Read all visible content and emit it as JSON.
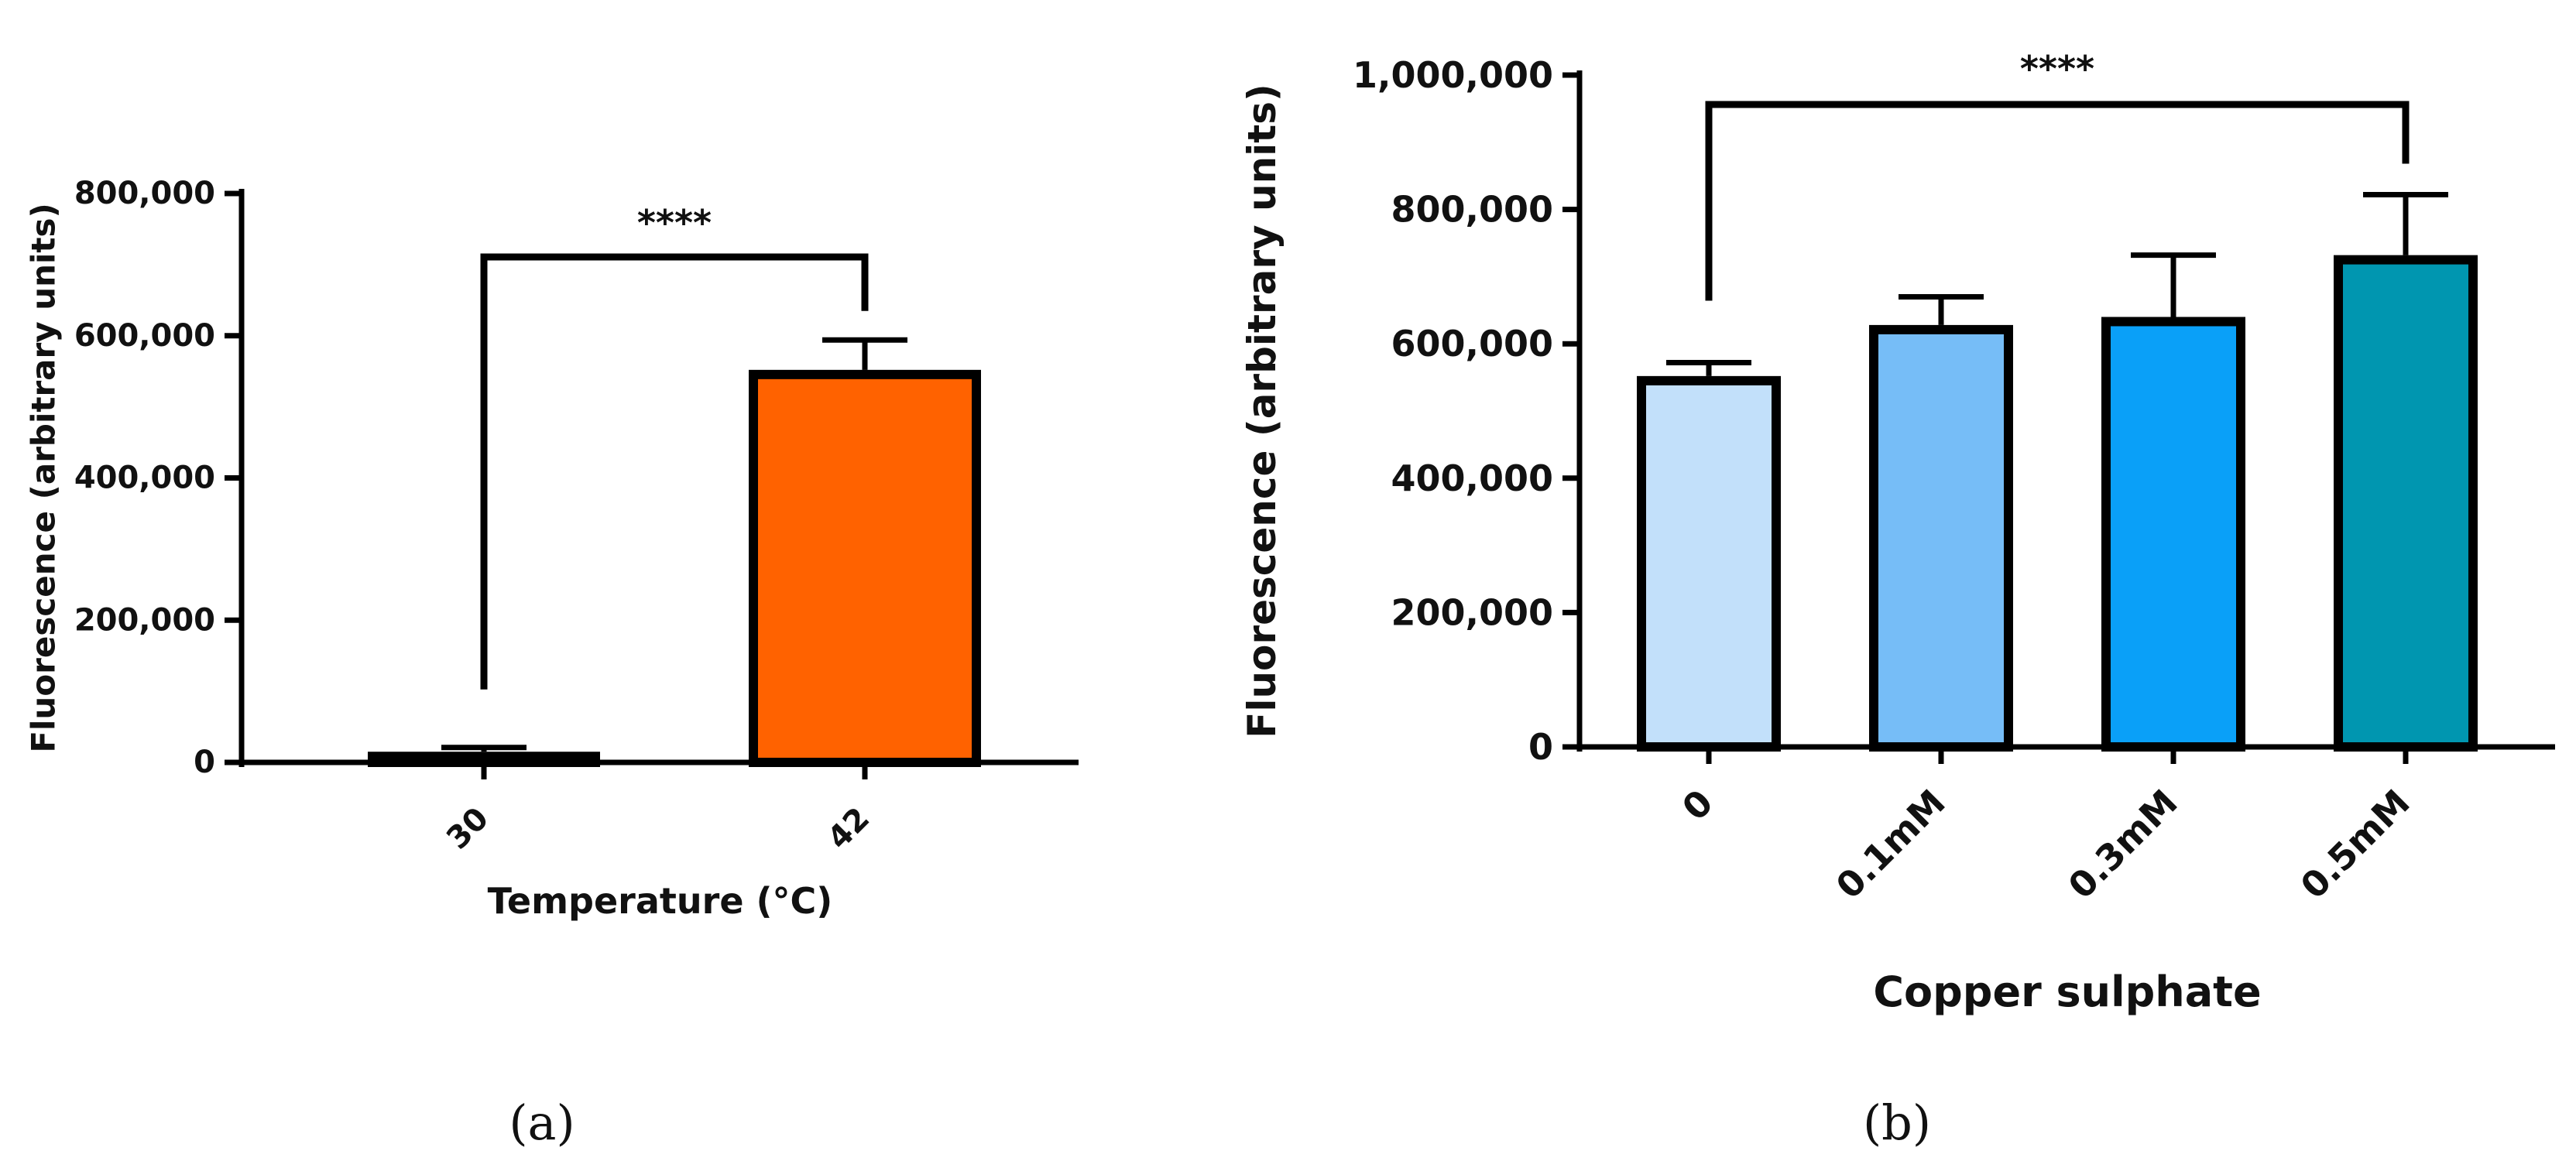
{
  "chart_data": [
    {
      "type": "bar",
      "panel_label": "(a)",
      "title": "",
      "xlabel": "Temperature (°C)",
      "ylabel": "Fluorescence (arbitrary units)",
      "ylim": [
        0,
        800000
      ],
      "yticks": [
        0,
        200000,
        400000,
        600000,
        800000
      ],
      "ytick_labels": [
        "0",
        "200,000",
        "400,000",
        "600,000",
        "800,000"
      ],
      "categories": [
        "30",
        "42"
      ],
      "values": [
        15000,
        552000
      ],
      "errors": [
        6000,
        42000
      ],
      "colors": [
        "#1a1a1a",
        "#ff6200"
      ],
      "significance": {
        "from": 0,
        "to": 1,
        "label": "****"
      },
      "grid": false,
      "legend": "none"
    },
    {
      "type": "bar",
      "panel_label": "(b)",
      "title": "",
      "xlabel": "Copper sulphate",
      "ylabel": "Fluorescence (arbitrary units)",
      "ylim": [
        0,
        1000000
      ],
      "yticks": [
        0,
        200000,
        400000,
        600000,
        800000,
        1000000
      ],
      "ytick_labels": [
        "0",
        "200,000",
        "400,000",
        "600,000",
        "800,000",
        "1,000,000"
      ],
      "categories": [
        "0",
        "0.1mM",
        "0.3mM",
        "0.5mM"
      ],
      "values": [
        552000,
        628000,
        640000,
        732000
      ],
      "errors": [
        20000,
        42000,
        92000,
        90000
      ],
      "colors": [
        "#c2e0fa",
        "#76bdf7",
        "#0aa0f8",
        "#0096b0"
      ],
      "significance": {
        "from": 0,
        "to": 3,
        "label": "****"
      },
      "grid": false,
      "legend": "none"
    }
  ]
}
